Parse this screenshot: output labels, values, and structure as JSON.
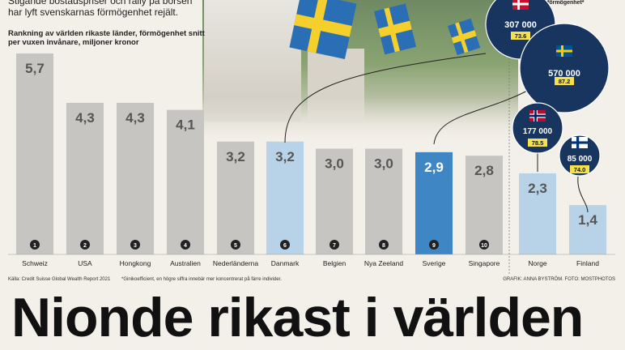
{
  "lead": "Stigande bostadspriser och rally på börsen har lyft svenskarnas förmögenhet rejält.",
  "subtitle": "Rankning av världen rikaste länder, förmögenhet snitt per vuxen invånare, miljoner kronor",
  "legend_note": "förmögenhet*",
  "source": "Källa: Credit Suisse Global Wealth Report 2021",
  "footnote": "*Ginikoefficient, en högre siffra innebär mer koncentrerat på färre individer.",
  "credit": "GRAFIK: ANNA BYSTRÖM. FOTO: MOSTPHOTOS",
  "headline": "Nionde rikast i världen",
  "colors": {
    "grey_bar": "#c7c5c1",
    "light_blue_bar": "#b8d3e8",
    "sweden_bar": "#3f86c4",
    "navy_bubble": "#17355f",
    "badge_yellow": "#f6e14b"
  },
  "chart_data": {
    "type": "bar",
    "categories": [
      "Schweiz",
      "USA",
      "Hongkong",
      "Australien",
      "Nederländerna",
      "Danmark",
      "Belgien",
      "Nya Zeeland",
      "Sverige",
      "Singapore",
      "Norge",
      "Finland"
    ],
    "values": [
      5.7,
      4.3,
      4.3,
      4.1,
      3.2,
      3.2,
      3.0,
      3.0,
      2.9,
      2.8,
      2.3,
      1.4
    ],
    "value_labels": [
      "5,7",
      "4,3",
      "4,3",
      "4,1",
      "3,2",
      "3,2",
      "3,0",
      "3,0",
      "2,9",
      "2,8",
      "2,3",
      "1,4"
    ],
    "ranks": [
      "1",
      "2",
      "3",
      "4",
      "5",
      "6",
      "7",
      "8",
      "9",
      "10",
      "",
      ""
    ],
    "highlight": {
      "Sverige": "sweden_bar",
      "Danmark": "light_blue_bar",
      "Norge": "light_blue_bar",
      "Finland": "light_blue_bar"
    },
    "ylim": [
      0,
      6
    ],
    "bubbles": [
      {
        "country": "Danmark",
        "flag": "danish-flag-icon",
        "value": "307 000",
        "gini": "73.6"
      },
      {
        "country": "Sverige",
        "flag": "swedish-flag-icon",
        "value": "570 000",
        "gini": "87.2"
      },
      {
        "country": "Norge",
        "flag": "norwegian-flag-icon",
        "value": "177 000",
        "gini": "78.5"
      },
      {
        "country": "Finland",
        "flag": "finnish-flag-icon",
        "value": "85 000",
        "gini": "74.0"
      }
    ]
  }
}
